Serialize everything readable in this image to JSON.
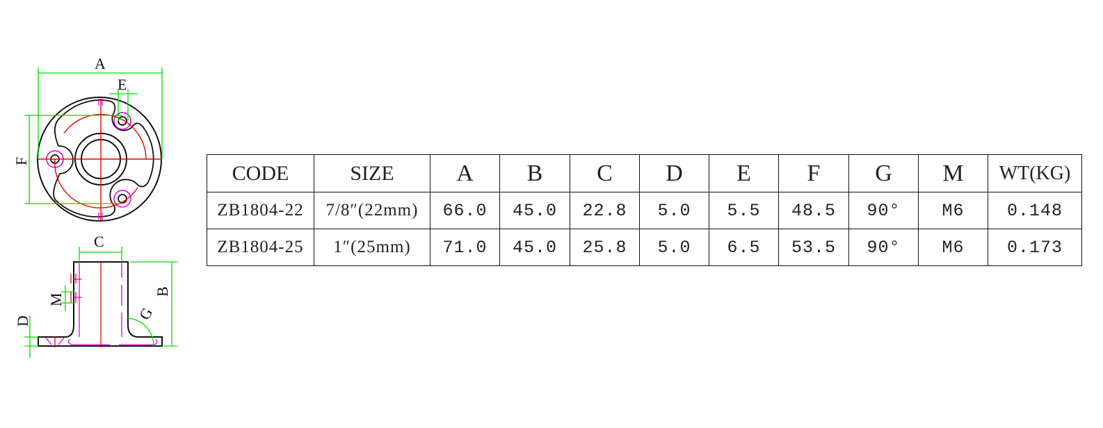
{
  "drawing": {
    "labels": {
      "A": "A",
      "B": "B",
      "C": "C",
      "D": "D",
      "E": "E",
      "F": "F",
      "G": "G",
      "M": "M"
    },
    "colors": {
      "outline": "#111111",
      "dimension": "#00dd00",
      "centerline": "#ee0000",
      "hidden": "#dd00dd"
    }
  },
  "table": {
    "headers": [
      "CODE",
      "SIZE",
      "A",
      "B",
      "C",
      "D",
      "E",
      "F",
      "G",
      "M",
      "WT(KG)"
    ],
    "rows": [
      [
        "ZB1804-22",
        "7/8″(22mm)",
        "66.0",
        "45.0",
        "22.8",
        "5.0",
        "5.5",
        "48.5",
        "90°",
        "M6",
        "0.148"
      ],
      [
        "ZB1804-25",
        "1″(25mm)",
        "71.0",
        "45.0",
        "25.8",
        "5.0",
        "6.5",
        "53.5",
        "90°",
        "M6",
        "0.173"
      ]
    ]
  }
}
